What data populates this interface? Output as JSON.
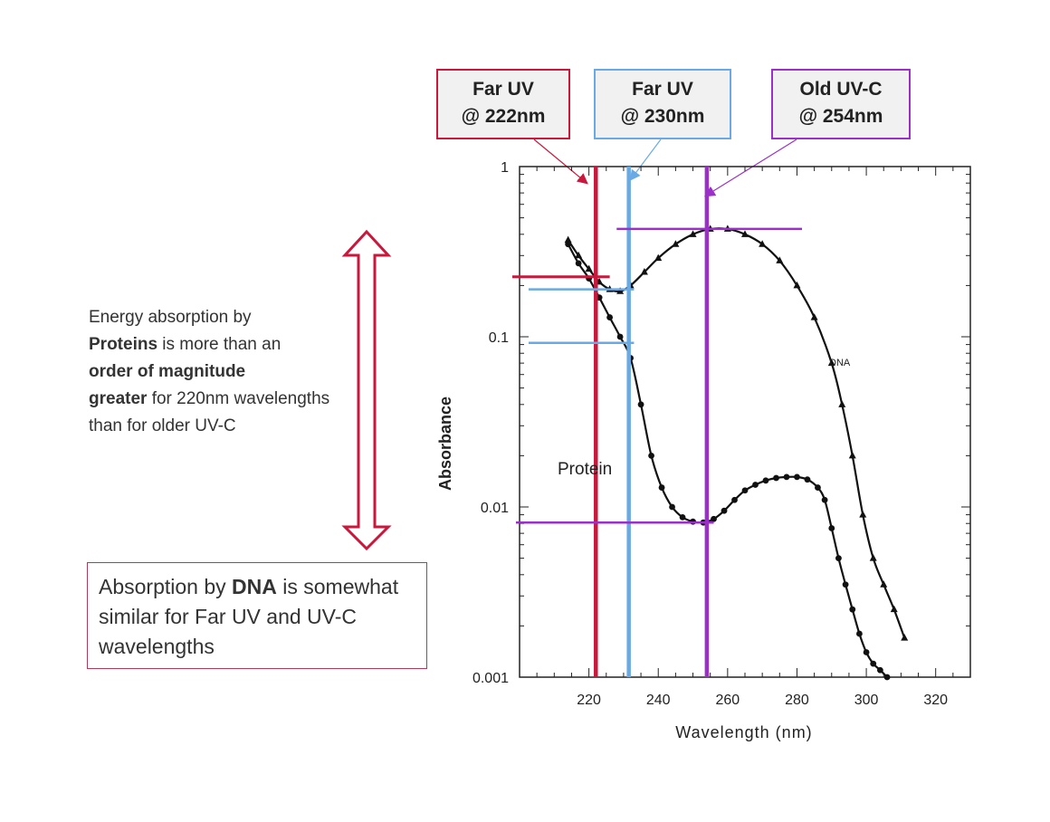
{
  "labels": {
    "far_uv_222": {
      "line1": "Far UV",
      "line2": "@ 222nm",
      "color": "#c8193c"
    },
    "far_uv_230": {
      "line1": "Far UV",
      "line2": "@ 230nm",
      "color": "#6aaae4"
    },
    "old_uvc_254": {
      "line1": "Old UV-C",
      "line2": "@ 254nm",
      "color": "#9b30c8"
    }
  },
  "notes": {
    "proteins": {
      "t1": "Energy absorption by",
      "t2": "Proteins",
      "t3": " is more than an",
      "t4": "order of magnitude",
      "t5": "greater",
      "t6": " for 220nm wavelengths than for older UV-C"
    },
    "dna": {
      "t1": "Absorption by ",
      "t2": "DNA",
      "t3": " is somewhat similar for Far UV and UV-C wavelengths"
    }
  },
  "arrow_color": "#c8193c",
  "chart_data": {
    "type": "line",
    "xlabel": "Wavelength (nm)",
    "ylabel": "Absorbance",
    "xlim": [
      200,
      330
    ],
    "ylim": [
      0.001,
      1
    ],
    "yscale": "log",
    "xticks": [
      220,
      240,
      260,
      280,
      300,
      320
    ],
    "yticks": [
      {
        "value": 1,
        "label": "1"
      },
      {
        "value": 0.1,
        "label": "0.1"
      },
      {
        "value": 0.01,
        "label": "0.01"
      },
      {
        "value": 0.001,
        "label": "0.001"
      }
    ],
    "series": [
      {
        "name": "DNA",
        "marker": "triangle",
        "points": [
          [
            214,
            0.37
          ],
          [
            217,
            0.3
          ],
          [
            220,
            0.25
          ],
          [
            223,
            0.21
          ],
          [
            226,
            0.19
          ],
          [
            229,
            0.185
          ],
          [
            232,
            0.2
          ],
          [
            236,
            0.24
          ],
          [
            240,
            0.29
          ],
          [
            245,
            0.35
          ],
          [
            250,
            0.4
          ],
          [
            255,
            0.43
          ],
          [
            260,
            0.43
          ],
          [
            265,
            0.4
          ],
          [
            270,
            0.35
          ],
          [
            275,
            0.28
          ],
          [
            280,
            0.2
          ],
          [
            285,
            0.13
          ],
          [
            290,
            0.07
          ],
          [
            293,
            0.04
          ],
          [
            296,
            0.02
          ],
          [
            299,
            0.009
          ],
          [
            302,
            0.005
          ],
          [
            305,
            0.0035
          ],
          [
            308,
            0.0025
          ],
          [
            311,
            0.0017
          ]
        ]
      },
      {
        "name": "Protein",
        "marker": "circle",
        "points": [
          [
            214,
            0.35
          ],
          [
            217,
            0.27
          ],
          [
            220,
            0.22
          ],
          [
            223,
            0.17
          ],
          [
            226,
            0.13
          ],
          [
            229,
            0.1
          ],
          [
            232,
            0.075
          ],
          [
            235,
            0.04
          ],
          [
            238,
            0.02
          ],
          [
            241,
            0.013
          ],
          [
            244,
            0.01
          ],
          [
            247,
            0.0087
          ],
          [
            250,
            0.0082
          ],
          [
            253,
            0.0081
          ],
          [
            256,
            0.0085
          ],
          [
            259,
            0.0095
          ],
          [
            262,
            0.011
          ],
          [
            265,
            0.0125
          ],
          [
            268,
            0.0135
          ],
          [
            271,
            0.0143
          ],
          [
            274,
            0.0148
          ],
          [
            277,
            0.015
          ],
          [
            280,
            0.015
          ],
          [
            283,
            0.0145
          ],
          [
            286,
            0.013
          ],
          [
            288,
            0.011
          ],
          [
            290,
            0.0075
          ],
          [
            292,
            0.005
          ],
          [
            294,
            0.0035
          ],
          [
            296,
            0.0025
          ],
          [
            298,
            0.0018
          ],
          [
            300,
            0.0014
          ],
          [
            302,
            0.0012
          ],
          [
            304,
            0.0011
          ],
          [
            306,
            0.001
          ]
        ]
      }
    ],
    "annotations": [
      "DNA",
      "Protein"
    ]
  }
}
